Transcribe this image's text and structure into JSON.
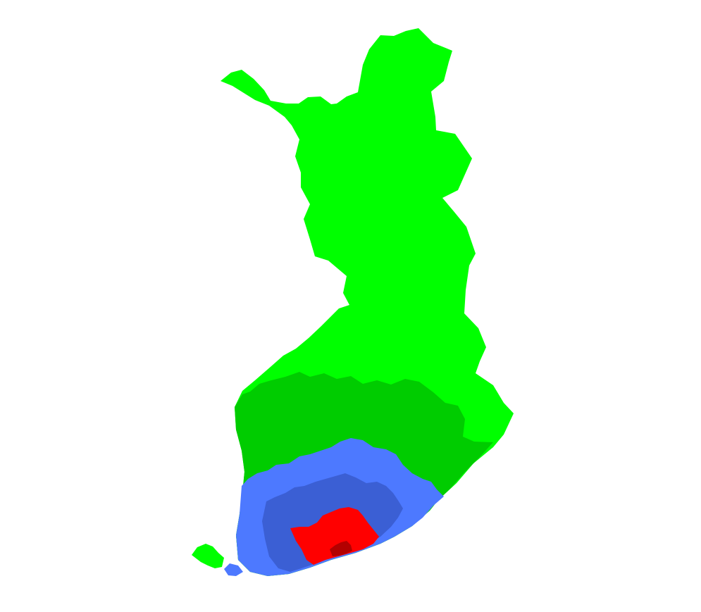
{
  "map": {
    "subject": "Finland",
    "background_color": "#ffffff",
    "zones": [
      {
        "id": "zone-outer",
        "color": "#00ff00"
      },
      {
        "id": "zone-second",
        "color": "#00cc00"
      },
      {
        "id": "zone-third",
        "color": "#4d79ff"
      },
      {
        "id": "zone-fourth",
        "color": "#3b5fd4"
      },
      {
        "id": "zone-inner",
        "color": "#ff0000"
      },
      {
        "id": "zone-core",
        "color": "#b30000"
      }
    ]
  }
}
